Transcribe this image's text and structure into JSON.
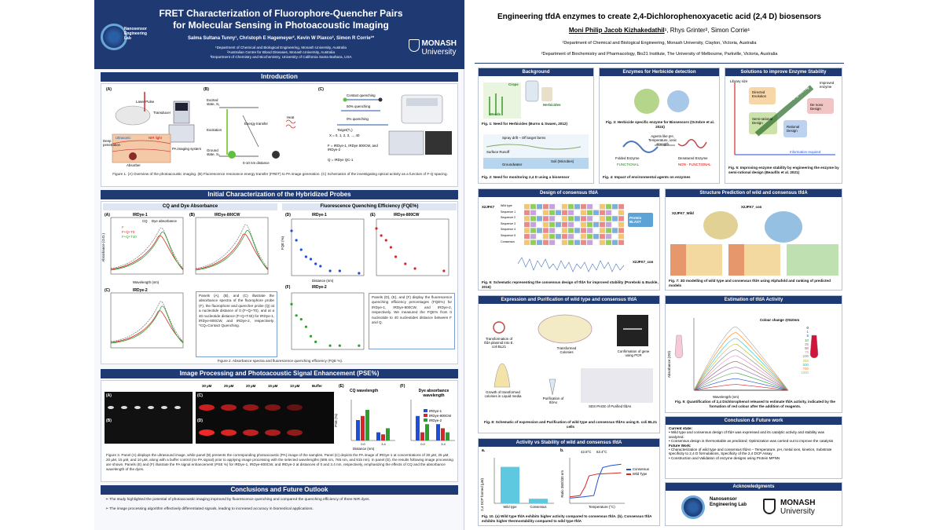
{
  "poster1": {
    "title_line1": "FRET Characterization of Fluorophore-Quencher Pairs",
    "title_line2": "for Molecular Sensing in Photoacoustic Imaging",
    "authors": "Salma Sultana Tunny¹, Christoph E Hagemeyer², Kevin W Plaxco³, Simon R Corrie¹*",
    "affiliation1": "¹Department of Chemical and Biological Engineering, Monash University, Australia",
    "affiliation2": "²Australian Centre for Blood Diseases, Monash University, Australia",
    "affiliation3": "³Department of Chemistry and Biochemistry, University of California Santa Barbara, USA",
    "lab_logo": "Nanosensor Engineering Lab",
    "monash_logo_line1": "MONASH",
    "monash_logo_line2": "University",
    "introduction": {
      "header": "Introduction",
      "panel_a": "(A)",
      "panel_b": "(B)",
      "panel_c": "(C)",
      "laser_pulse": "Laser Pulse",
      "transducer": "Transducer",
      "pa_system": "PA imaging system",
      "ultrasonic": "Ultrasonic",
      "nir_light": "NIR light",
      "absorber": "Absorber",
      "deep_penetration": "Deep penetration",
      "excited_state": "Excited state, S₁",
      "excitation": "Excitation",
      "ground_state": "Ground state, S₀",
      "heat": "Heat",
      "energy_transfer": "Energy transfer",
      "distance": "0-10 nm distance",
      "contact_quenching": "Contact quenching",
      "quenching_50": "50% quenching",
      "quenching_0": "0% quenching",
      "target": "Target(T₀)",
      "x_values": "X = 0, 1, 2, 3, ..., 40",
      "legend_f": "F = IRDye-1, IRDye 800CW, and IRDye-2",
      "legend_q": "Q = IRDye QC-1",
      "caption": "Figure 1. (A) Overview of the photoacoustic imaging. (B) Fluorescence resonance energy transfer (FRET) to PA image generation. (C) Schematics of the investigating optical activity as a function of F-Q spacing."
    },
    "characterization": {
      "header": "Initial Characterization of the Hybridized Probes",
      "cq_title": "CQ and Dye Absorbance",
      "fqe_title": "Fluorescence Quenching Efficiency (FQE%)",
      "plot_a_label": "(A)",
      "plot_a_title": "IRDye-1",
      "plot_b_label": "(B)",
      "plot_b_title": "IRDye-800CW",
      "plot_c_label": "(C)",
      "plot_c_title": "IRDye-2",
      "plot_d_label": "(D)",
      "plot_d_title": "IRDye-1",
      "plot_e_label": "(E)",
      "plot_e_title": "IRDye-800CW",
      "plot_f_label": "(F)",
      "plot_f_title": "IRDye-2",
      "cq_label": "CQ",
      "dye_abs_label": "Dye absorbance",
      "legend_f": "F",
      "legend_fqt0": "F+Q+T0",
      "legend_fqt40": "F+Q+T40",
      "absorbance_label": "Absorbance (O.D.)",
      "wavelength_label": "Wavelength (nm)",
      "fqe_axis": "FQE (%)",
      "distance_axis": "Distance (nm)",
      "text_left": "Panels (A), (B), and (C) illustrate the absorbance spectra of the fluorophore probe (F), the fluorophore and quencher probe (Q) at a nucleotide distance of 0 (F+Q+T0), and at a 40 nucleotide distance (F+Q+T40) for IRDye-1, IRDye-800CW, and IRDye-2, respectively. *CQ=Contact Quenching.",
      "text_right": "Panels (D), (E), and (F) display the fluorescence quenching efficiency percentages (FQE%) for IRDye-1, IRDye-800CW, and IRDye-2, respectively. We measured the FQE% from 0 nucleotide to 40 nucleotides distance between F and Q.",
      "caption": "Figure 2. Absorbance spectra and fluorescence quenching efficiency (FQE %)."
    },
    "imaging": {
      "header": "Image Processing and Photoacoustic Signal Enhancement (PSE%)",
      "conc_labels": [
        "30 µM",
        "25 µM",
        "20 µM",
        "15 µM",
        "10 µM",
        "Buffer"
      ],
      "panel_a": "(A)",
      "panel_b": "(B)",
      "panel_c": "(C)",
      "panel_d": "(D)",
      "panel_e": "(E)",
      "panel_f": "(F)",
      "e_title": "CQ wavelength",
      "f_title": "Dye absorbance wavelength",
      "pse_axis": "PSE (%)",
      "distance_axis": "Distance (nm)",
      "legend": [
        "IRDye-1",
        "IRDye-800CW",
        "IRDye-2"
      ],
      "x_ticks": [
        "0.0",
        "3.4"
      ],
      "caption": "Figure 3. Panel (A) displays the ultrasound image, while panel (B) presents the corresponding photoacoustic (PA) image of the samples. Panel (C) depicts the PA image of IRDye-1 at concentrations of 30 µM, 25 µM, 20 µM, 15 µM, and 10 µM, along with a buffer control (no PA signal) prior to applying image processing with the selected wavelengths (685 nm, 785 nm, and 915 nm). In panel (D), the results following image processing are shown. Panels (E) and (F) illustrate the PA signal enhancement (PSE %) for IRDye-1, IRDye-800CW, and IRDye-2 at distances of 0 and 3.4 nm, respectively, emphasizing the effects of CQ and the absorbance wavelength of the dyes."
    },
    "conclusions": {
      "header": "Conclusions and Future Outlook",
      "bullets": [
        "The study highlighted the potential of photoacoustic imaging improved by fluorescence quenching and compared the quenching efficiency of three NIR dyes.",
        "The image processing algorithm effectively differentiated signals, leading to increased accuracy in biomedical applications."
      ]
    }
  },
  "poster2": {
    "title": "Engineering tfdA enzymes to create 2,4-Dichlorophenoxyacetic acid (2,4 D) biosensors",
    "presenter": "Moni Philip Jacob Kizhakedathil",
    "coauthors": "¹, Rhys Grinter², Simon Corrie¹",
    "affiliation1": "¹Department of Chemical and Biological Engineering, Monash University, Clayton, Victoria, Australia",
    "affiliation2": "²Department of Biochemistry and Pharmacology, Bio21 Institute, The University of Melbourne, Parkville, Victoria, Australia",
    "background": {
      "header": "Background",
      "crops": "Crops",
      "weeds": "Weeds",
      "herbicides": "Herbicides",
      "fig1": "Fig. 1: Need for Herbicides (Burns & Swaen, 2012)",
      "spray_drift": "Spray drift – Off target farms",
      "surface_runoff": "Surface Runoff",
      "groundwater": "Groundwater",
      "soil": "Soil (Microbes)",
      "fig2": "Fig. 2: Need for monitoring 2,4 D using a biosensor"
    },
    "enzymes": {
      "header": "Enzymes for Herbicide detection",
      "fig3": "Fig. 3: Herbicide specific enzyme for Biosensors (Octobre et al. 2024)",
      "agents": "Agents like pH, Temperature, ionic strength",
      "folded": "Folded Enzyme",
      "denatured": "Denatured Enzyme",
      "functional": "FUNCTIONAL",
      "non_functional": "NON - FUNCTIONAL",
      "fig4": "Fig. 4: Impact of environmental agents on enzymes"
    },
    "solutions": {
      "header": "Solutions to improve  Enzyme Stability",
      "library_size": "Library size",
      "directed_evolution": "Directed Evolution",
      "protein_engineering": "Protein Engineering",
      "improved_enzyme": "Improved enzyme",
      "semi_rational": "Semi-rational Design",
      "de_novo": "De novo Design",
      "rational": "Rational Design",
      "information_required": "Information required",
      "fig5": "Fig. 5: Improving enzyme stability by engineering the enzyme by semi-rational design (Beaufils et al. 2021)"
    },
    "design": {
      "header": "Design of consensus tfdA",
      "seq_label": "X2JFK7",
      "sequences": [
        "Wild type",
        "Sequence 1",
        "Sequence 2",
        "Sequence 3",
        "Sequence 4",
        "Sequence 5",
        "Consensus"
      ],
      "blast": "Protein BLAST",
      "result": "X2JFK7_con",
      "fig6": "Fig. 6: Schematic representing the consensus design of tfdA for improved stability (Porebski & Buckle, 2016)"
    },
    "structure": {
      "header": "Structure Prediction of wild and consensus tfdA",
      "wild": "X2JFK7_Wild",
      "con": "X2JFK7_con",
      "fig7": "Fig. 7: 3D modelling of wild type and consensus tfdA using Alphafold and ranking of predicted models"
    },
    "expression": {
      "header": "Expression and Purification of wild type and consensus tfdA",
      "transformation": "Transformation of tfdA plasmid into E. coli BL21",
      "transformed": "Transformed Colonies",
      "confirmation": "Confirmation of gene using PCR",
      "growth": "Growth of transformed colonies in Liquid media",
      "purification": "Purification of tfdAs",
      "sds": "SDS PAGE of Purified tfdAs",
      "fig8": "Fig. 8: Schematic of expression and Purification of wild type and consensus tfdAs using E. coli BL21 cells"
    },
    "estimation": {
      "header": "Estimation of tfdA Activity",
      "colour_change": "Colour change @510nm",
      "concentrations": [
        "0",
        "1",
        "5",
        "10",
        "25",
        "50",
        "75",
        "100",
        "250",
        "500",
        "750",
        "1000"
      ],
      "absorbance_axis": "Absorbance (OD)",
      "wavelength_axis": "Wavelength (nm)",
      "fig9": "Fig. 9: Quantification of 2,4 Dichlorophenol released to estimate tfdA activity, indicated by the formation of red colour after the addition of reagents."
    },
    "activity": {
      "header": "Activity vs Stability of wild and consensus tfdA",
      "label_a": "a.",
      "label_b": "b.",
      "bar_categories": [
        "Wild type",
        "Consensus"
      ],
      "y_axis_a": "2,4 DCP formed (µM)",
      "y_axis_b": "Ratio 350/330 nm",
      "x_axis_b": "Temperature (°C)",
      "tm1": "42.5°C",
      "tm2": "62.4°C",
      "legend": [
        "Consensus",
        "Wild Type"
      ],
      "fig10": "Fig. 10. (a) Wild type tfdA exhibits higher activity compared to consensus tfdA. (b). Consensus tfdA exhibits higher thermostability compared to wild type  tfdA"
    },
    "conclusion": {
      "header": "Conclusion & Future work",
      "current_state": "Current state:",
      "current_bullets": [
        "Wild type and consensus design of tfdA was expressed and its catalytic activity and stability was analyzed.",
        "Consensus design is thermostable as predicted; Optimization was carried out to improve the catalysis"
      ],
      "future_work": "Future Work:",
      "future_bullets": [
        "Characterization of wild type and consensus tfdAs – Temperature, pH, metal ions, kinetics, Substrate specificity to 2,4 D formulations, Specificity of the 2,4 DCP Assay",
        "Construction and Validation of enzyme designs using Protein MPNN"
      ]
    },
    "acknowledgments": {
      "header": "Acknowledgments",
      "lab": "Nanosensor Engineering Lab",
      "monash_line1": "MONASH",
      "monash_line2": "University"
    }
  },
  "chart_data": [
    {
      "type": "scatter",
      "title": "IRDye-1",
      "xlabel": "Distance (nm)",
      "ylabel": "FQE (%)",
      "x": [
        0,
        1,
        2,
        3,
        4,
        5,
        6,
        8,
        10,
        14
      ],
      "y": [
        95,
        75,
        55,
        40,
        35,
        25,
        20,
        10,
        10,
        5
      ],
      "xlim": [
        0,
        15
      ],
      "ylim": [
        0,
        120
      ]
    },
    {
      "type": "scatter",
      "title": "IRDye-800CW",
      "xlabel": "Distance (nm)",
      "ylabel": "FQE (%)",
      "x": [
        0,
        1,
        2,
        3,
        4,
        6,
        8,
        14
      ],
      "y": [
        100,
        85,
        75,
        60,
        40,
        25,
        15,
        10
      ],
      "xlim": [
        0,
        15
      ],
      "ylim": [
        0,
        120
      ]
    },
    {
      "type": "scatter",
      "title": "IRDye-2",
      "xlabel": "Distance (nm)",
      "ylabel": "FQE (%)",
      "x": [
        0,
        1,
        2,
        3,
        4,
        5,
        8,
        10,
        14
      ],
      "y": [
        120,
        90,
        80,
        60,
        35,
        20,
        10,
        10,
        10
      ],
      "xlim": [
        0,
        15
      ],
      "ylim": [
        0,
        150
      ]
    },
    {
      "type": "bar",
      "title": "CQ wavelength",
      "xlabel": "Distance (nm)",
      "ylabel": "PSE (%)",
      "categories": [
        "0.0",
        "3.4"
      ],
      "series": [
        {
          "name": "IRDye-1",
          "values": [
            500,
            200
          ]
        },
        {
          "name": "IRDye-800CW",
          "values": [
            600,
            150
          ]
        },
        {
          "name": "IRDye-2",
          "values": [
            750,
            300
          ]
        }
      ],
      "ylim": [
        0,
        1000
      ]
    },
    {
      "type": "bar",
      "title": "Dye absorbance wavelength",
      "xlabel": "Distance (nm)",
      "ylabel": "PSE (%)",
      "categories": [
        "0.0",
        "3.4"
      ],
      "series": [
        {
          "name": "IRDye-1",
          "values": [
            60,
            40
          ]
        },
        {
          "name": "IRDye-800CW",
          "values": [
            20,
            30
          ]
        },
        {
          "name": "IRDye-2",
          "values": [
            40,
            20
          ]
        }
      ],
      "ylim": [
        0,
        100
      ]
    },
    {
      "type": "bar",
      "title": "",
      "ylabel": "2,4 DCP formed (µM)",
      "categories": [
        "Wild type",
        "Consensus"
      ],
      "values": [
        96,
        12
      ],
      "ylim": [
        0,
        120
      ]
    },
    {
      "type": "line",
      "title": "",
      "xlabel": "Temperature (°C)",
      "ylabel": "Ratio 350/330 nm",
      "series": [
        {
          "name": "Consensus",
          "x": [
            20,
            40,
            55,
            62,
            68,
            80,
            95
          ],
          "y": [
            0.58,
            0.6,
            0.62,
            0.9,
            1.05,
            1.08,
            1.1
          ]
        },
        {
          "name": "Wild Type",
          "x": [
            20,
            35,
            42,
            48,
            60,
            80,
            95
          ],
          "y": [
            0.6,
            0.62,
            0.75,
            0.92,
            0.95,
            0.96,
            0.97
          ]
        }
      ],
      "xlim": [
        20,
        100
      ],
      "ylim": [
        0.5,
        1.2
      ]
    }
  ],
  "colors": {
    "navy": "#1f3a73",
    "red": "#d62728",
    "green": "#2ca02c",
    "blue": "#1f4fd8"
  }
}
